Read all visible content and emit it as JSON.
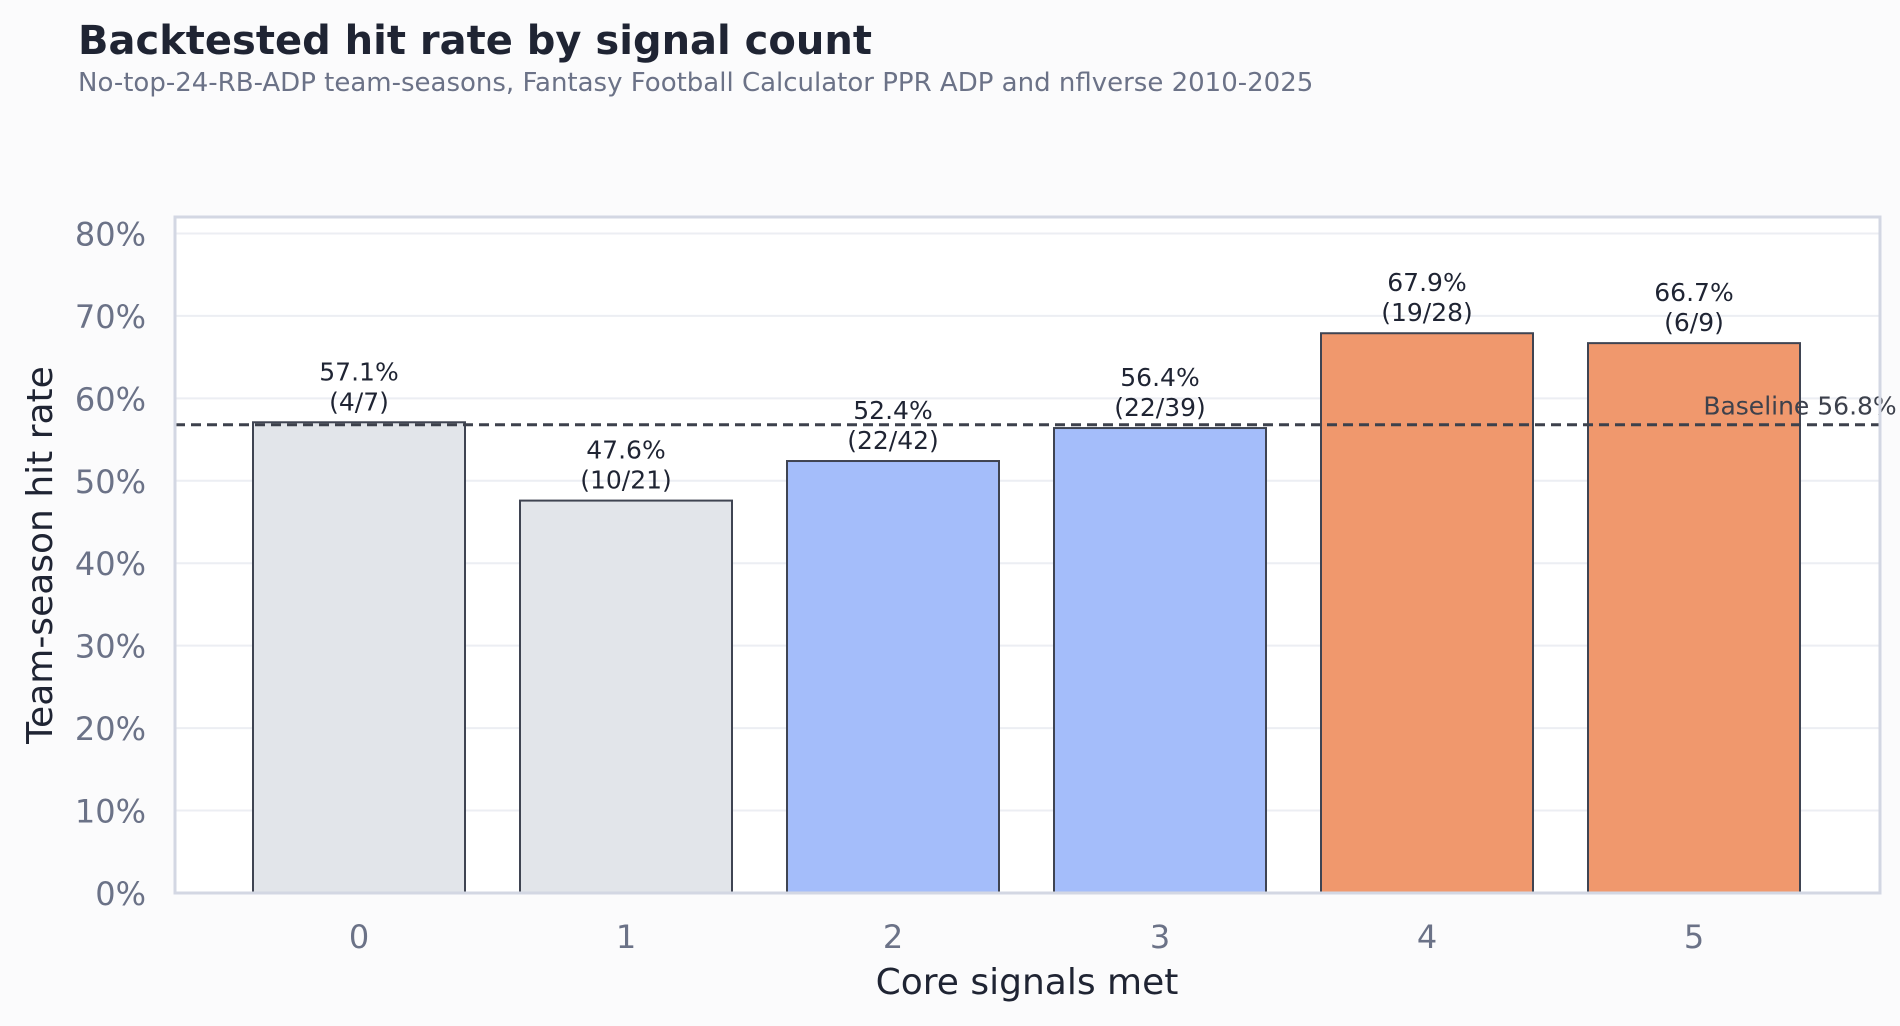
{
  "chart_data": {
    "type": "bar",
    "title": "Backtested hit rate by signal count",
    "subtitle": "No-top-24-RB-ADP team-seasons, Fantasy Football Calculator PPR ADP and nflverse 2010-2025",
    "xlabel": "Core signals met",
    "ylabel": "Team-season hit rate",
    "categories": [
      "0",
      "1",
      "2",
      "3",
      "4",
      "5"
    ],
    "values": [
      57.1,
      47.6,
      52.4,
      56.4,
      67.9,
      66.7
    ],
    "bar_labels": [
      [
        "57.1%",
        "(4/7)"
      ],
      [
        "47.6%",
        "(10/21)"
      ],
      [
        "52.4%",
        "(22/42)"
      ],
      [
        "56.4%",
        "(22/39)"
      ],
      [
        "67.9%",
        "(19/28)"
      ],
      [
        "66.7%",
        "(6/9)"
      ]
    ],
    "bar_colors": [
      "#e2e5ea",
      "#e2e5ea",
      "#a4bdfa",
      "#a4bdfa",
      "#f0986d",
      "#f0986d"
    ],
    "ylim": [
      0,
      82
    ],
    "yticks": [
      0,
      10,
      20,
      30,
      40,
      50,
      60,
      70,
      80
    ],
    "ytick_labels": [
      "0%",
      "10%",
      "20%",
      "30%",
      "40%",
      "50%",
      "60%",
      "70%",
      "80%"
    ],
    "baseline": {
      "value": 56.8,
      "label": "Baseline 56.8%"
    },
    "grid": "horizontal",
    "colors": {
      "background": "#fbfbfc",
      "plot_background": "#ffffff",
      "grid": "#eceef3",
      "axis_frame": "#d3d7e3",
      "title": "#1f2433",
      "subtitle": "#6b7287",
      "tick_text": "#6b7287",
      "label_text": "#1f2433",
      "bar_edge": "#3f4452",
      "baseline": "#3d414c"
    }
  }
}
